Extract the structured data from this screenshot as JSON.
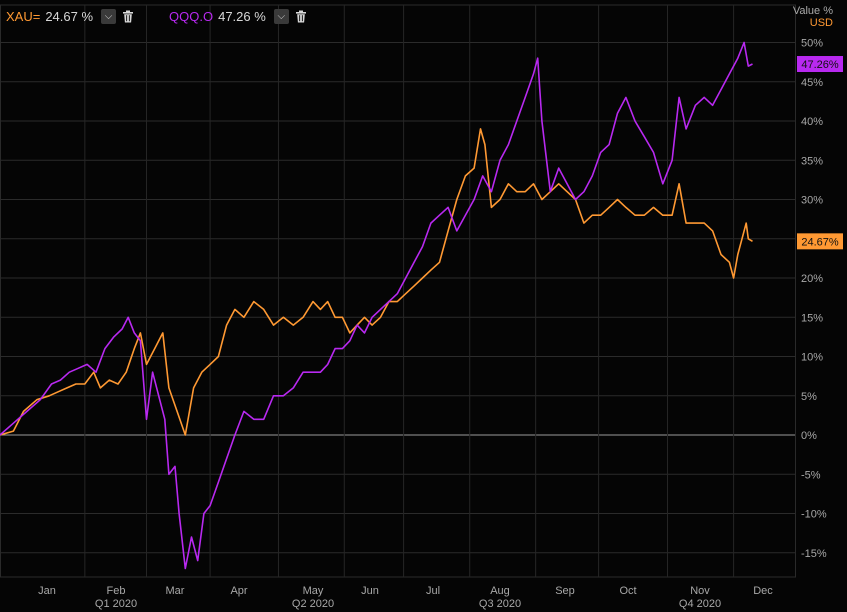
{
  "chart_data": {
    "type": "line",
    "y_axis_title": "Value %",
    "y_axis_unit": "USD",
    "ylim": [
      -18,
      52
    ],
    "y_ticks": [
      -15,
      -10,
      -5,
      0,
      5,
      10,
      15,
      20,
      25,
      30,
      35,
      40,
      45,
      50
    ],
    "y_tick_labels": [
      "-15%",
      "-10%",
      "-5%",
      "0%",
      "5%",
      "10%",
      "15%",
      "20%",
      "25%",
      "30%",
      "35%",
      "40%",
      "45%",
      "50%"
    ],
    "x_month_labels": [
      "Jan",
      "Feb",
      "Mar",
      "Apr",
      "May",
      "Jun",
      "Jul",
      "Aug",
      "Sep",
      "Oct",
      "Nov",
      "Dec"
    ],
    "x_quarter_labels": [
      "Q1 2020",
      "Q2 2020",
      "Q3 2020",
      "Q4 2020"
    ],
    "grid": true,
    "legend_position": "top-left",
    "x_start": "2020-01-01",
    "x_end": "2020-12-10",
    "series": [
      {
        "name": "XAU=",
        "value_label": "24.67 %",
        "end_badge": "24.67%",
        "color": "#ff9933",
        "points": [
          [
            "2020-01-01",
            0
          ],
          [
            "2020-01-05",
            0.5
          ],
          [
            "2020-01-08",
            3
          ],
          [
            "2020-01-12",
            4.5
          ],
          [
            "2020-01-16",
            5
          ],
          [
            "2020-01-20",
            5.5
          ],
          [
            "2020-01-24",
            6
          ],
          [
            "2020-01-28",
            6.5
          ],
          [
            "2020-02-01",
            6.5
          ],
          [
            "2020-02-05",
            8
          ],
          [
            "2020-02-08",
            6
          ],
          [
            "2020-02-12",
            7
          ],
          [
            "2020-02-16",
            6.5
          ],
          [
            "2020-02-20",
            8
          ],
          [
            "2020-02-24",
            11
          ],
          [
            "2020-02-27",
            13
          ],
          [
            "2020-03-01",
            9
          ],
          [
            "2020-03-05",
            11
          ],
          [
            "2020-03-09",
            13
          ],
          [
            "2020-03-12",
            6
          ],
          [
            "2020-03-16",
            3
          ],
          [
            "2020-03-20",
            0
          ],
          [
            "2020-03-24",
            6
          ],
          [
            "2020-03-28",
            8
          ],
          [
            "2020-04-01",
            9
          ],
          [
            "2020-04-05",
            10
          ],
          [
            "2020-04-09",
            14
          ],
          [
            "2020-04-13",
            16
          ],
          [
            "2020-04-17",
            15
          ],
          [
            "2020-04-21",
            17
          ],
          [
            "2020-04-25",
            16
          ],
          [
            "2020-04-29",
            14
          ],
          [
            "2020-05-03",
            15
          ],
          [
            "2020-05-07",
            14
          ],
          [
            "2020-05-11",
            15
          ],
          [
            "2020-05-15",
            17
          ],
          [
            "2020-05-19",
            16
          ],
          [
            "2020-05-23",
            17
          ],
          [
            "2020-05-27",
            15
          ],
          [
            "2020-05-31",
            15
          ],
          [
            "2020-06-04",
            13
          ],
          [
            "2020-06-08",
            14
          ],
          [
            "2020-06-12",
            15
          ],
          [
            "2020-06-16",
            14
          ],
          [
            "2020-06-20",
            15
          ],
          [
            "2020-06-24",
            17
          ],
          [
            "2020-06-28",
            17
          ],
          [
            "2020-07-02",
            18
          ],
          [
            "2020-07-06",
            19
          ],
          [
            "2020-07-10",
            20
          ],
          [
            "2020-07-14",
            21
          ],
          [
            "2020-07-18",
            22
          ],
          [
            "2020-07-22",
            26
          ],
          [
            "2020-07-26",
            30
          ],
          [
            "2020-07-30",
            33
          ],
          [
            "2020-08-03",
            34
          ],
          [
            "2020-08-06",
            39
          ],
          [
            "2020-08-08",
            37
          ],
          [
            "2020-08-11",
            29
          ],
          [
            "2020-08-15",
            30
          ],
          [
            "2020-08-19",
            32
          ],
          [
            "2020-08-23",
            31
          ],
          [
            "2020-08-27",
            31
          ],
          [
            "2020-08-31",
            32
          ],
          [
            "2020-09-04",
            30
          ],
          [
            "2020-09-08",
            31
          ],
          [
            "2020-09-12",
            32
          ],
          [
            "2020-09-16",
            31
          ],
          [
            "2020-09-20",
            30
          ],
          [
            "2020-09-24",
            27
          ],
          [
            "2020-09-28",
            28
          ],
          [
            "2020-10-02",
            28
          ],
          [
            "2020-10-06",
            29
          ],
          [
            "2020-10-10",
            30
          ],
          [
            "2020-10-14",
            29
          ],
          [
            "2020-10-18",
            28
          ],
          [
            "2020-10-22",
            28
          ],
          [
            "2020-10-26",
            29
          ],
          [
            "2020-10-30",
            28
          ],
          [
            "2020-11-03",
            28
          ],
          [
            "2020-11-06",
            32
          ],
          [
            "2020-11-09",
            27
          ],
          [
            "2020-11-13",
            27
          ],
          [
            "2020-11-17",
            27
          ],
          [
            "2020-11-21",
            26
          ],
          [
            "2020-11-25",
            23
          ],
          [
            "2020-11-29",
            22
          ],
          [
            "2020-12-01",
            20
          ],
          [
            "2020-12-03",
            23
          ],
          [
            "2020-12-05",
            25
          ],
          [
            "2020-12-07",
            27
          ],
          [
            "2020-12-08",
            25
          ],
          [
            "2020-12-10",
            24.67
          ]
        ]
      },
      {
        "name": "QQQ.O",
        "value_label": "47.26 %",
        "end_badge": "47.26%",
        "color": "#b829f0",
        "points": [
          [
            "2020-01-01",
            0
          ],
          [
            "2020-01-05",
            1.5
          ],
          [
            "2020-01-09",
            3
          ],
          [
            "2020-01-13",
            4.5
          ],
          [
            "2020-01-17",
            6.5
          ],
          [
            "2020-01-21",
            7
          ],
          [
            "2020-01-25",
            8
          ],
          [
            "2020-01-29",
            8.5
          ],
          [
            "2020-02-02",
            9
          ],
          [
            "2020-02-06",
            8
          ],
          [
            "2020-02-10",
            11
          ],
          [
            "2020-02-14",
            12.5
          ],
          [
            "2020-02-18",
            13.5
          ],
          [
            "2020-02-21",
            15
          ],
          [
            "2020-02-24",
            13
          ],
          [
            "2020-02-27",
            12
          ],
          [
            "2020-03-01",
            2
          ],
          [
            "2020-03-04",
            8
          ],
          [
            "2020-03-07",
            5
          ],
          [
            "2020-03-10",
            2
          ],
          [
            "2020-03-12",
            -5
          ],
          [
            "2020-03-15",
            -4
          ],
          [
            "2020-03-17",
            -10
          ],
          [
            "2020-03-20",
            -17
          ],
          [
            "2020-03-23",
            -13
          ],
          [
            "2020-03-26",
            -16
          ],
          [
            "2020-03-29",
            -10
          ],
          [
            "2020-04-01",
            -9
          ],
          [
            "2020-04-05",
            -6
          ],
          [
            "2020-04-09",
            -3
          ],
          [
            "2020-04-13",
            0
          ],
          [
            "2020-04-17",
            3
          ],
          [
            "2020-04-21",
            2
          ],
          [
            "2020-04-25",
            2
          ],
          [
            "2020-04-29",
            5
          ],
          [
            "2020-05-03",
            5
          ],
          [
            "2020-05-07",
            6
          ],
          [
            "2020-05-11",
            8
          ],
          [
            "2020-05-15",
            8
          ],
          [
            "2020-05-19",
            8
          ],
          [
            "2020-05-23",
            9
          ],
          [
            "2020-05-27",
            11
          ],
          [
            "2020-05-31",
            11
          ],
          [
            "2020-06-04",
            12
          ],
          [
            "2020-06-08",
            14
          ],
          [
            "2020-06-12",
            13
          ],
          [
            "2020-06-16",
            15
          ],
          [
            "2020-06-20",
            16
          ],
          [
            "2020-06-24",
            17
          ],
          [
            "2020-06-28",
            18
          ],
          [
            "2020-07-02",
            20
          ],
          [
            "2020-07-06",
            22
          ],
          [
            "2020-07-10",
            24
          ],
          [
            "2020-07-14",
            27
          ],
          [
            "2020-07-18",
            28
          ],
          [
            "2020-07-22",
            29
          ],
          [
            "2020-07-26",
            26
          ],
          [
            "2020-07-30",
            28
          ],
          [
            "2020-08-03",
            30
          ],
          [
            "2020-08-07",
            33
          ],
          [
            "2020-08-11",
            31
          ],
          [
            "2020-08-15",
            35
          ],
          [
            "2020-08-19",
            37
          ],
          [
            "2020-08-23",
            40
          ],
          [
            "2020-08-27",
            43
          ],
          [
            "2020-08-31",
            46
          ],
          [
            "2020-09-02",
            48
          ],
          [
            "2020-09-04",
            40
          ],
          [
            "2020-09-08",
            31
          ],
          [
            "2020-09-12",
            34
          ],
          [
            "2020-09-16",
            32
          ],
          [
            "2020-09-20",
            30
          ],
          [
            "2020-09-24",
            31
          ],
          [
            "2020-09-28",
            33
          ],
          [
            "2020-10-02",
            36
          ],
          [
            "2020-10-06",
            37
          ],
          [
            "2020-10-10",
            41
          ],
          [
            "2020-10-14",
            43
          ],
          [
            "2020-10-18",
            40
          ],
          [
            "2020-10-22",
            38
          ],
          [
            "2020-10-26",
            36
          ],
          [
            "2020-10-30",
            32
          ],
          [
            "2020-11-03",
            35
          ],
          [
            "2020-11-06",
            43
          ],
          [
            "2020-11-09",
            39
          ],
          [
            "2020-11-13",
            42
          ],
          [
            "2020-11-17",
            43
          ],
          [
            "2020-11-21",
            42
          ],
          [
            "2020-11-25",
            44
          ],
          [
            "2020-11-29",
            46
          ],
          [
            "2020-12-03",
            48
          ],
          [
            "2020-12-06",
            50
          ],
          [
            "2020-12-08",
            47
          ],
          [
            "2020-12-10",
            47.26
          ]
        ]
      }
    ]
  }
}
